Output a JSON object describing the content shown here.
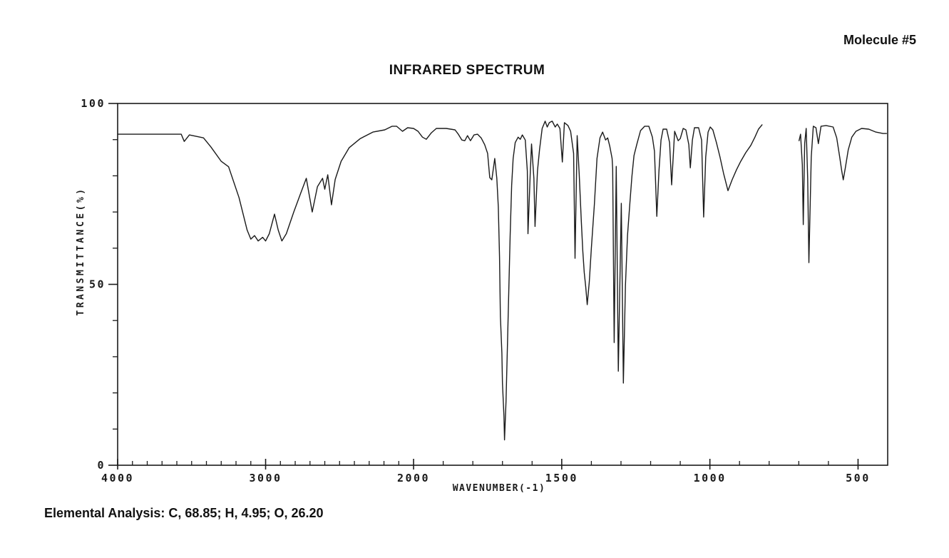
{
  "page": {
    "molecule_label": "Molecule #5",
    "elemental_analysis": "Elemental Analysis: C, 68.85; H, 4.95; O, 26.20",
    "background_color": "#ffffff",
    "ink_color": "#1a1a1a"
  },
  "chart_data": {
    "type": "line",
    "title": "INFRARED SPECTRUM",
    "xlabel": "WAVENUMBER(-1)",
    "ylabel": "TRANSMITTANCE(%)",
    "grid": false,
    "legend": false,
    "x_axis": {
      "unit": "cm-1",
      "range": [
        4000,
        400
      ],
      "direction": "decreasing",
      "scale_break_at": 2000,
      "anchors_wavenumber": [
        4000,
        2000,
        400
      ],
      "anchors_fraction": [
        0,
        0.3843,
        1
      ],
      "minor_tick_step": 100,
      "major_ticks": [
        {
          "value": 4000,
          "label": "4000"
        },
        {
          "value": 3000,
          "label": "3000"
        },
        {
          "value": 2000,
          "label": "2000"
        },
        {
          "value": 1500,
          "label": "1500"
        },
        {
          "value": 1000,
          "label": "1000"
        },
        {
          "value": 500,
          "label": "500"
        }
      ]
    },
    "y_axis": {
      "unit": "percent transmittance",
      "range": [
        0,
        100
      ],
      "minor_tick_step": 10,
      "major_ticks": [
        {
          "value": 100,
          "label": "100"
        },
        {
          "value": 50,
          "label": "50"
        },
        {
          "value": 0,
          "label": "0"
        }
      ]
    },
    "series": [
      {
        "name": "IR transmittance curve",
        "points_format": [
          "wavenumber_cm-1",
          "transmittance_percent"
        ],
        "segments": [
          [
            [
              4000,
              91.5
            ],
            [
              3570,
              91.5
            ],
            [
              3550,
              89.5
            ],
            [
              3515,
              91.3
            ],
            [
              3420,
              90.5
            ],
            [
              3370,
              88
            ],
            [
              3300,
              84
            ],
            [
              3250,
              82.5
            ],
            [
              3180,
              74
            ],
            [
              3125,
              65
            ],
            [
              3100,
              62.5
            ],
            [
              3075,
              63.5
            ],
            [
              3050,
              62
            ],
            [
              3020,
              63
            ],
            [
              3000,
              62
            ],
            [
              2975,
              64
            ],
            [
              2940,
              69.4
            ],
            [
              2915,
              65
            ],
            [
              2890,
              62
            ],
            [
              2860,
              64
            ],
            [
              2810,
              70
            ],
            [
              2760,
              75.5
            ],
            [
              2725,
              79.3
            ],
            [
              2685,
              70
            ],
            [
              2650,
              77
            ],
            [
              2615,
              79.3
            ],
            [
              2600,
              76.3
            ],
            [
              2580,
              80.3
            ],
            [
              2555,
              72
            ],
            [
              2530,
              79
            ],
            [
              2490,
              84
            ],
            [
              2435,
              87.8
            ],
            [
              2360,
              90.3
            ],
            [
              2275,
              92.1
            ],
            [
              2195,
              92.7
            ],
            [
              2145,
              93.7
            ],
            [
              2115,
              93.7
            ],
            [
              2075,
              92.3
            ],
            [
              2040,
              93.3
            ],
            [
              2000,
              93.1
            ],
            [
              1985,
              92.3
            ],
            [
              1970,
              90.7
            ],
            [
              1957,
              90.1
            ],
            [
              1940,
              91.9
            ],
            [
              1923,
              93.1
            ],
            [
              1890,
              93.1
            ],
            [
              1860,
              92.7
            ],
            [
              1849,
              91.5
            ],
            [
              1837,
              89.9
            ],
            [
              1827,
              89.7
            ],
            [
              1818,
              91.1
            ],
            [
              1808,
              89.7
            ],
            [
              1796,
              91.3
            ],
            [
              1784,
              91.5
            ],
            [
              1772,
              90.5
            ],
            [
              1760,
              88.6
            ],
            [
              1750,
              86.2
            ],
            [
              1743,
              79.5
            ],
            [
              1736,
              78.9
            ],
            [
              1726,
              84.8
            ],
            [
              1719,
              79.3
            ],
            [
              1714,
              71.4
            ],
            [
              1710,
              57.6
            ],
            [
              1707,
              41.2
            ],
            [
              1702,
              31
            ],
            [
              1700,
              22.7
            ],
            [
              1695,
              13.6
            ],
            [
              1693,
              7
            ],
            [
              1688,
              17.6
            ],
            [
              1683,
              33.9
            ],
            [
              1678,
              50.7
            ],
            [
              1674,
              63.5
            ],
            [
              1669,
              77.3
            ],
            [
              1664,
              84.8
            ],
            [
              1657,
              89.2
            ],
            [
              1647,
              90.7
            ],
            [
              1640,
              90.1
            ],
            [
              1633,
              91.3
            ],
            [
              1623,
              89.9
            ],
            [
              1616,
              81.3
            ],
            [
              1614,
              64
            ],
            [
              1606,
              81.3
            ],
            [
              1602,
              88.8
            ],
            [
              1594,
              79.3
            ],
            [
              1590,
              66
            ],
            [
              1582,
              81.3
            ],
            [
              1575,
              87.2
            ],
            [
              1566,
              93.1
            ],
            [
              1556,
              95.1
            ],
            [
              1549,
              93.5
            ],
            [
              1542,
              94.7
            ],
            [
              1532,
              95.1
            ],
            [
              1522,
              93.5
            ],
            [
              1515,
              94.3
            ],
            [
              1506,
              93.1
            ],
            [
              1498,
              83.8
            ],
            [
              1491,
              94.7
            ],
            [
              1479,
              93.9
            ],
            [
              1470,
              92.3
            ],
            [
              1460,
              86.2
            ],
            [
              1455,
              57.2
            ],
            [
              1448,
              91.1
            ],
            [
              1441,
              80.3
            ],
            [
              1434,
              67.5
            ],
            [
              1429,
              59.2
            ],
            [
              1424,
              53.3
            ],
            [
              1419,
              49.3
            ],
            [
              1414,
              44.4
            ],
            [
              1407,
              50.7
            ],
            [
              1400,
              60
            ],
            [
              1390,
              72
            ],
            [
              1381,
              84.8
            ],
            [
              1371,
              90.5
            ],
            [
              1362,
              92.1
            ],
            [
              1352,
              89.9
            ],
            [
              1345,
              90.5
            ],
            [
              1338,
              88.2
            ],
            [
              1330,
              84.8
            ],
            [
              1328,
              81.9
            ],
            [
              1323,
              33.9
            ],
            [
              1316,
              82.6
            ],
            [
              1309,
              26
            ],
            [
              1299,
              72.4
            ],
            [
              1292,
              22.7
            ],
            [
              1285,
              49.7
            ],
            [
              1278,
              63.5
            ],
            [
              1270,
              72.4
            ],
            [
              1263,
              79.9
            ],
            [
              1256,
              85.6
            ],
            [
              1246,
              88.9
            ],
            [
              1234,
              92.5
            ],
            [
              1220,
              93.7
            ],
            [
              1206,
              93.7
            ],
            [
              1194,
              90.7
            ],
            [
              1187,
              86.8
            ],
            [
              1179,
              68.8
            ],
            [
              1172,
              81.3
            ],
            [
              1165,
              89.9
            ],
            [
              1158,
              92.9
            ],
            [
              1146,
              92.9
            ],
            [
              1136,
              89.2
            ],
            [
              1129,
              77.5
            ],
            [
              1119,
              92.3
            ],
            [
              1107,
              89.7
            ],
            [
              1100,
              90.3
            ],
            [
              1090,
              93.1
            ],
            [
              1081,
              92.7
            ],
            [
              1071,
              88.6
            ],
            [
              1066,
              82.2
            ],
            [
              1059,
              89.9
            ],
            [
              1052,
              93.3
            ],
            [
              1038,
              93.3
            ],
            [
              1028,
              89.9
            ],
            [
              1021,
              68.6
            ],
            [
              1014,
              85.2
            ],
            [
              1006,
              92.1
            ],
            [
              999,
              93.5
            ],
            [
              990,
              92.7
            ],
            [
              978,
              89.2
            ],
            [
              966,
              85.2
            ],
            [
              954,
              80.7
            ],
            [
              939,
              75.9
            ],
            [
              925,
              78.9
            ],
            [
              910,
              81.7
            ],
            [
              896,
              84
            ],
            [
              879,
              86.4
            ],
            [
              862,
              88.4
            ],
            [
              848,
              90.7
            ],
            [
              836,
              92.9
            ],
            [
              824,
              94.1
            ]
          ],
          [
            [
              699,
              89.7
            ],
            [
              694,
              91.5
            ],
            [
              688,
              83
            ],
            [
              685,
              66.5
            ],
            [
              680,
              89
            ],
            [
              675,
              93.1
            ],
            [
              670,
              79.3
            ],
            [
              666,
              56
            ],
            [
              658,
              85.2
            ],
            [
              651,
              93.7
            ],
            [
              642,
              93.3
            ],
            [
              634,
              88.9
            ],
            [
              625,
              93.7
            ],
            [
              608,
              93.9
            ],
            [
              584,
              93.5
            ],
            [
              572,
              90.5
            ],
            [
              562,
              85.2
            ],
            [
              555,
              81.3
            ],
            [
              550,
              78.9
            ],
            [
              543,
              82.2
            ],
            [
              533,
              87.2
            ],
            [
              521,
              90.7
            ],
            [
              507,
              92.3
            ],
            [
              488,
              93.1
            ],
            [
              464,
              92.9
            ],
            [
              440,
              92.1
            ],
            [
              416,
              91.7
            ],
            [
              404,
              91.7
            ]
          ]
        ]
      }
    ]
  }
}
